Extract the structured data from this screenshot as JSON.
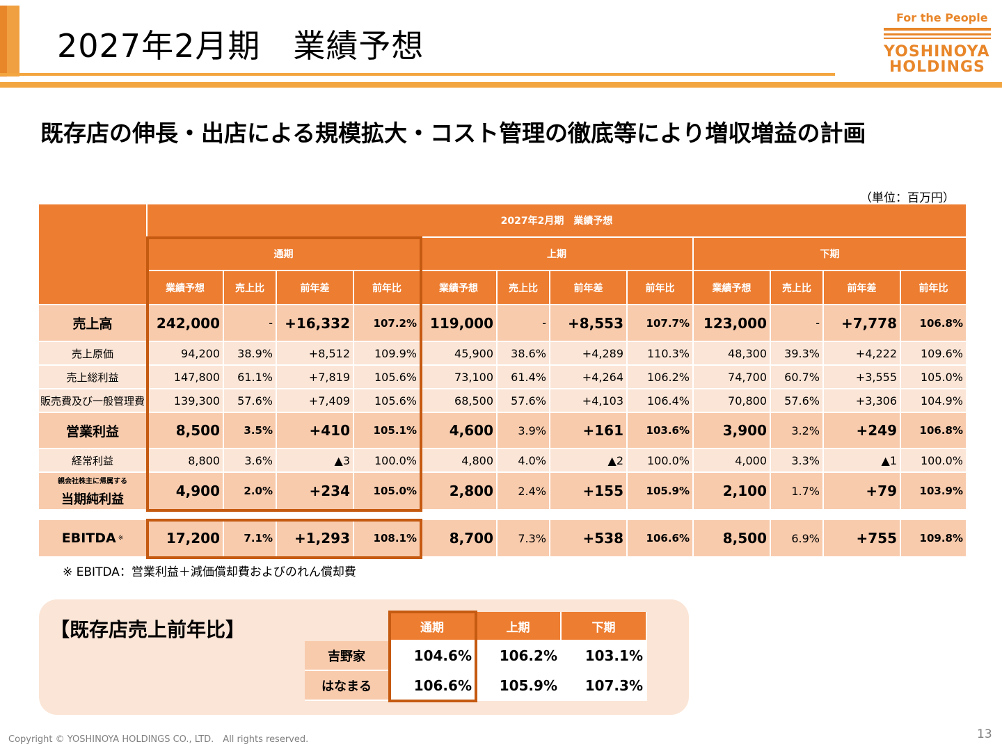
{
  "header": {
    "title": "2027年2月期　業績予想",
    "logo_tagline": "For the People",
    "logo_line1": "YOSHINOYA",
    "logo_line2": "HOLDINGS"
  },
  "subtitle": "既存店の伸長・出店による規模拡大・コスト管理の徹底等により増収増益の計画",
  "unit_note": "（単位：百万円）",
  "table": {
    "top_header": "2027年2月期　業績予想",
    "periods": [
      "通期",
      "上期",
      "下期"
    ],
    "col_headers": [
      "業績予想",
      "売上比",
      "前年差",
      "前年比"
    ],
    "rows": [
      {
        "label": "売上高",
        "cells": [
          "242,000",
          "-",
          "+16,332",
          "107.2%",
          "119,000",
          "-",
          "+8,553",
          "107.7%",
          "123,000",
          "-",
          "+7,778",
          "106.8%"
        ]
      },
      {
        "label": "売上原価",
        "cells": [
          "94,200",
          "38.9%",
          "+8,512",
          "109.9%",
          "45,900",
          "38.6%",
          "+4,289",
          "110.3%",
          "48,300",
          "39.3%",
          "+4,222",
          "109.6%"
        ]
      },
      {
        "label": "売上総利益",
        "cells": [
          "147,800",
          "61.1%",
          "+7,819",
          "105.6%",
          "73,100",
          "61.4%",
          "+4,264",
          "106.2%",
          "74,700",
          "60.7%",
          "+3,555",
          "105.0%"
        ]
      },
      {
        "label": "販売費及び一般管理費",
        "cells": [
          "139,300",
          "57.6%",
          "+7,409",
          "105.6%",
          "68,500",
          "57.6%",
          "+4,103",
          "106.4%",
          "70,800",
          "57.6%",
          "+3,306",
          "104.9%"
        ]
      },
      {
        "label": "営業利益",
        "cells": [
          "8,500",
          "3.5%",
          "+410",
          "105.1%",
          "4,600",
          "3.9%",
          "+161",
          "103.6%",
          "3,900",
          "3.2%",
          "+249",
          "106.8%"
        ]
      },
      {
        "label": "経常利益",
        "cells": [
          "8,800",
          "3.6%",
          "▲3",
          "100.0%",
          "4,800",
          "4.0%",
          "▲2",
          "100.0%",
          "4,000",
          "3.3%",
          "▲1",
          "100.0%"
        ]
      },
      {
        "label_small": "親会社株主に帰属する",
        "label": "当期純利益",
        "cells": [
          "4,900",
          "2.0%",
          "+234",
          "105.0%",
          "2,800",
          "2.4%",
          "+155",
          "105.9%",
          "2,100",
          "1.7%",
          "+79",
          "103.9%"
        ]
      }
    ],
    "ebitda": {
      "label": "EBITDA",
      "mark": "※",
      "cells": [
        "17,200",
        "7.1%",
        "+1,293",
        "108.1%",
        "8,700",
        "7.3%",
        "+538",
        "106.6%",
        "8,500",
        "6.9%",
        "+755",
        "109.8%"
      ]
    }
  },
  "footnote": "※ EBITDA：営業利益＋減価償却費およびのれん償却費",
  "same_store": {
    "title": "【既存店売上前年比】",
    "headers": [
      "通期",
      "上期",
      "下期"
    ],
    "rows": [
      {
        "label": "吉野家",
        "values": [
          "104.6%",
          "106.2%",
          "103.1%"
        ]
      },
      {
        "label": "はなまる",
        "values": [
          "106.6%",
          "105.9%",
          "107.3%"
        ]
      }
    ]
  },
  "footer": {
    "copyright": "Copyright © YOSHINOYA HOLDINGS CO., LTD.　All rights reserved.",
    "page_number": "13"
  },
  "colors": {
    "accent": "#ed7d31",
    "highlight_border": "#c55a11",
    "pink_row": "#f8cbad",
    "light_row": "#fbe5d6",
    "logo": "#e8862a"
  }
}
